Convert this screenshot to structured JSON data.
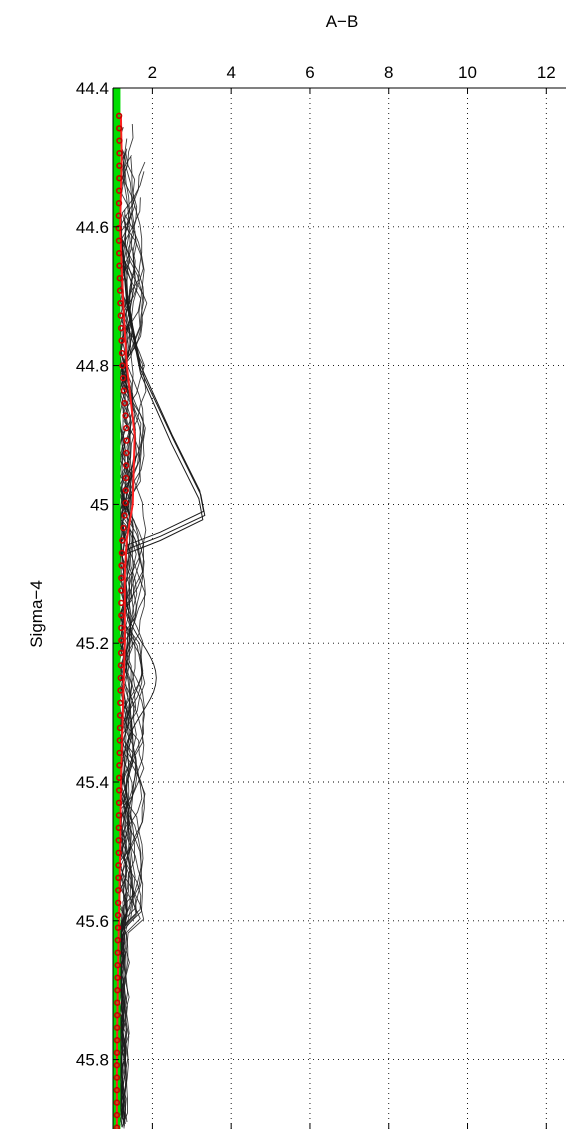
{
  "chart_data": {
    "type": "line",
    "xlabel": "A−B",
    "ylabel": "Sigma−4",
    "xlim": [
      1,
      12.5
    ],
    "ylim": [
      45.9,
      44.4
    ],
    "x_ticks": [
      "2",
      "4",
      "6",
      "8",
      "10",
      "12"
    ],
    "y_ticks": [
      "44.4",
      "44.6",
      "44.8",
      "45",
      "45.2",
      "45.4",
      "45.6",
      "45.8"
    ],
    "grid": true,
    "x_axis_position": "top",
    "y_axis_inverted": true,
    "colors": {
      "profiles": "#1a1a1a",
      "reference": "#00dd00",
      "mean_line": "#ff2020",
      "markers": "#cc0000"
    },
    "reference": {
      "x": 1.1,
      "y_range": [
        44.4,
        45.9
      ]
    },
    "mean_profile": {
      "y": [
        44.44,
        44.5,
        44.6,
        44.7,
        44.8,
        44.9,
        45.0,
        45.05,
        45.1,
        45.2,
        45.3,
        45.4,
        45.5,
        45.6,
        45.7,
        45.8,
        45.9
      ],
      "x": [
        1.2,
        1.22,
        1.18,
        1.25,
        1.35,
        1.55,
        1.5,
        1.35,
        1.3,
        1.3,
        1.25,
        1.2,
        1.18,
        1.15,
        1.12,
        1.1,
        1.1
      ]
    },
    "marker_y_range": [
      44.44,
      45.9
    ],
    "marker_step": 0.018,
    "spike": {
      "y": [
        44.6,
        44.7,
        44.8,
        44.9,
        44.98,
        45.01,
        45.04,
        45.06
      ],
      "x": [
        1.2,
        1.35,
        1.7,
        2.5,
        3.2,
        3.3,
        2.2,
        1.3
      ]
    },
    "profiles_count": 22
  }
}
